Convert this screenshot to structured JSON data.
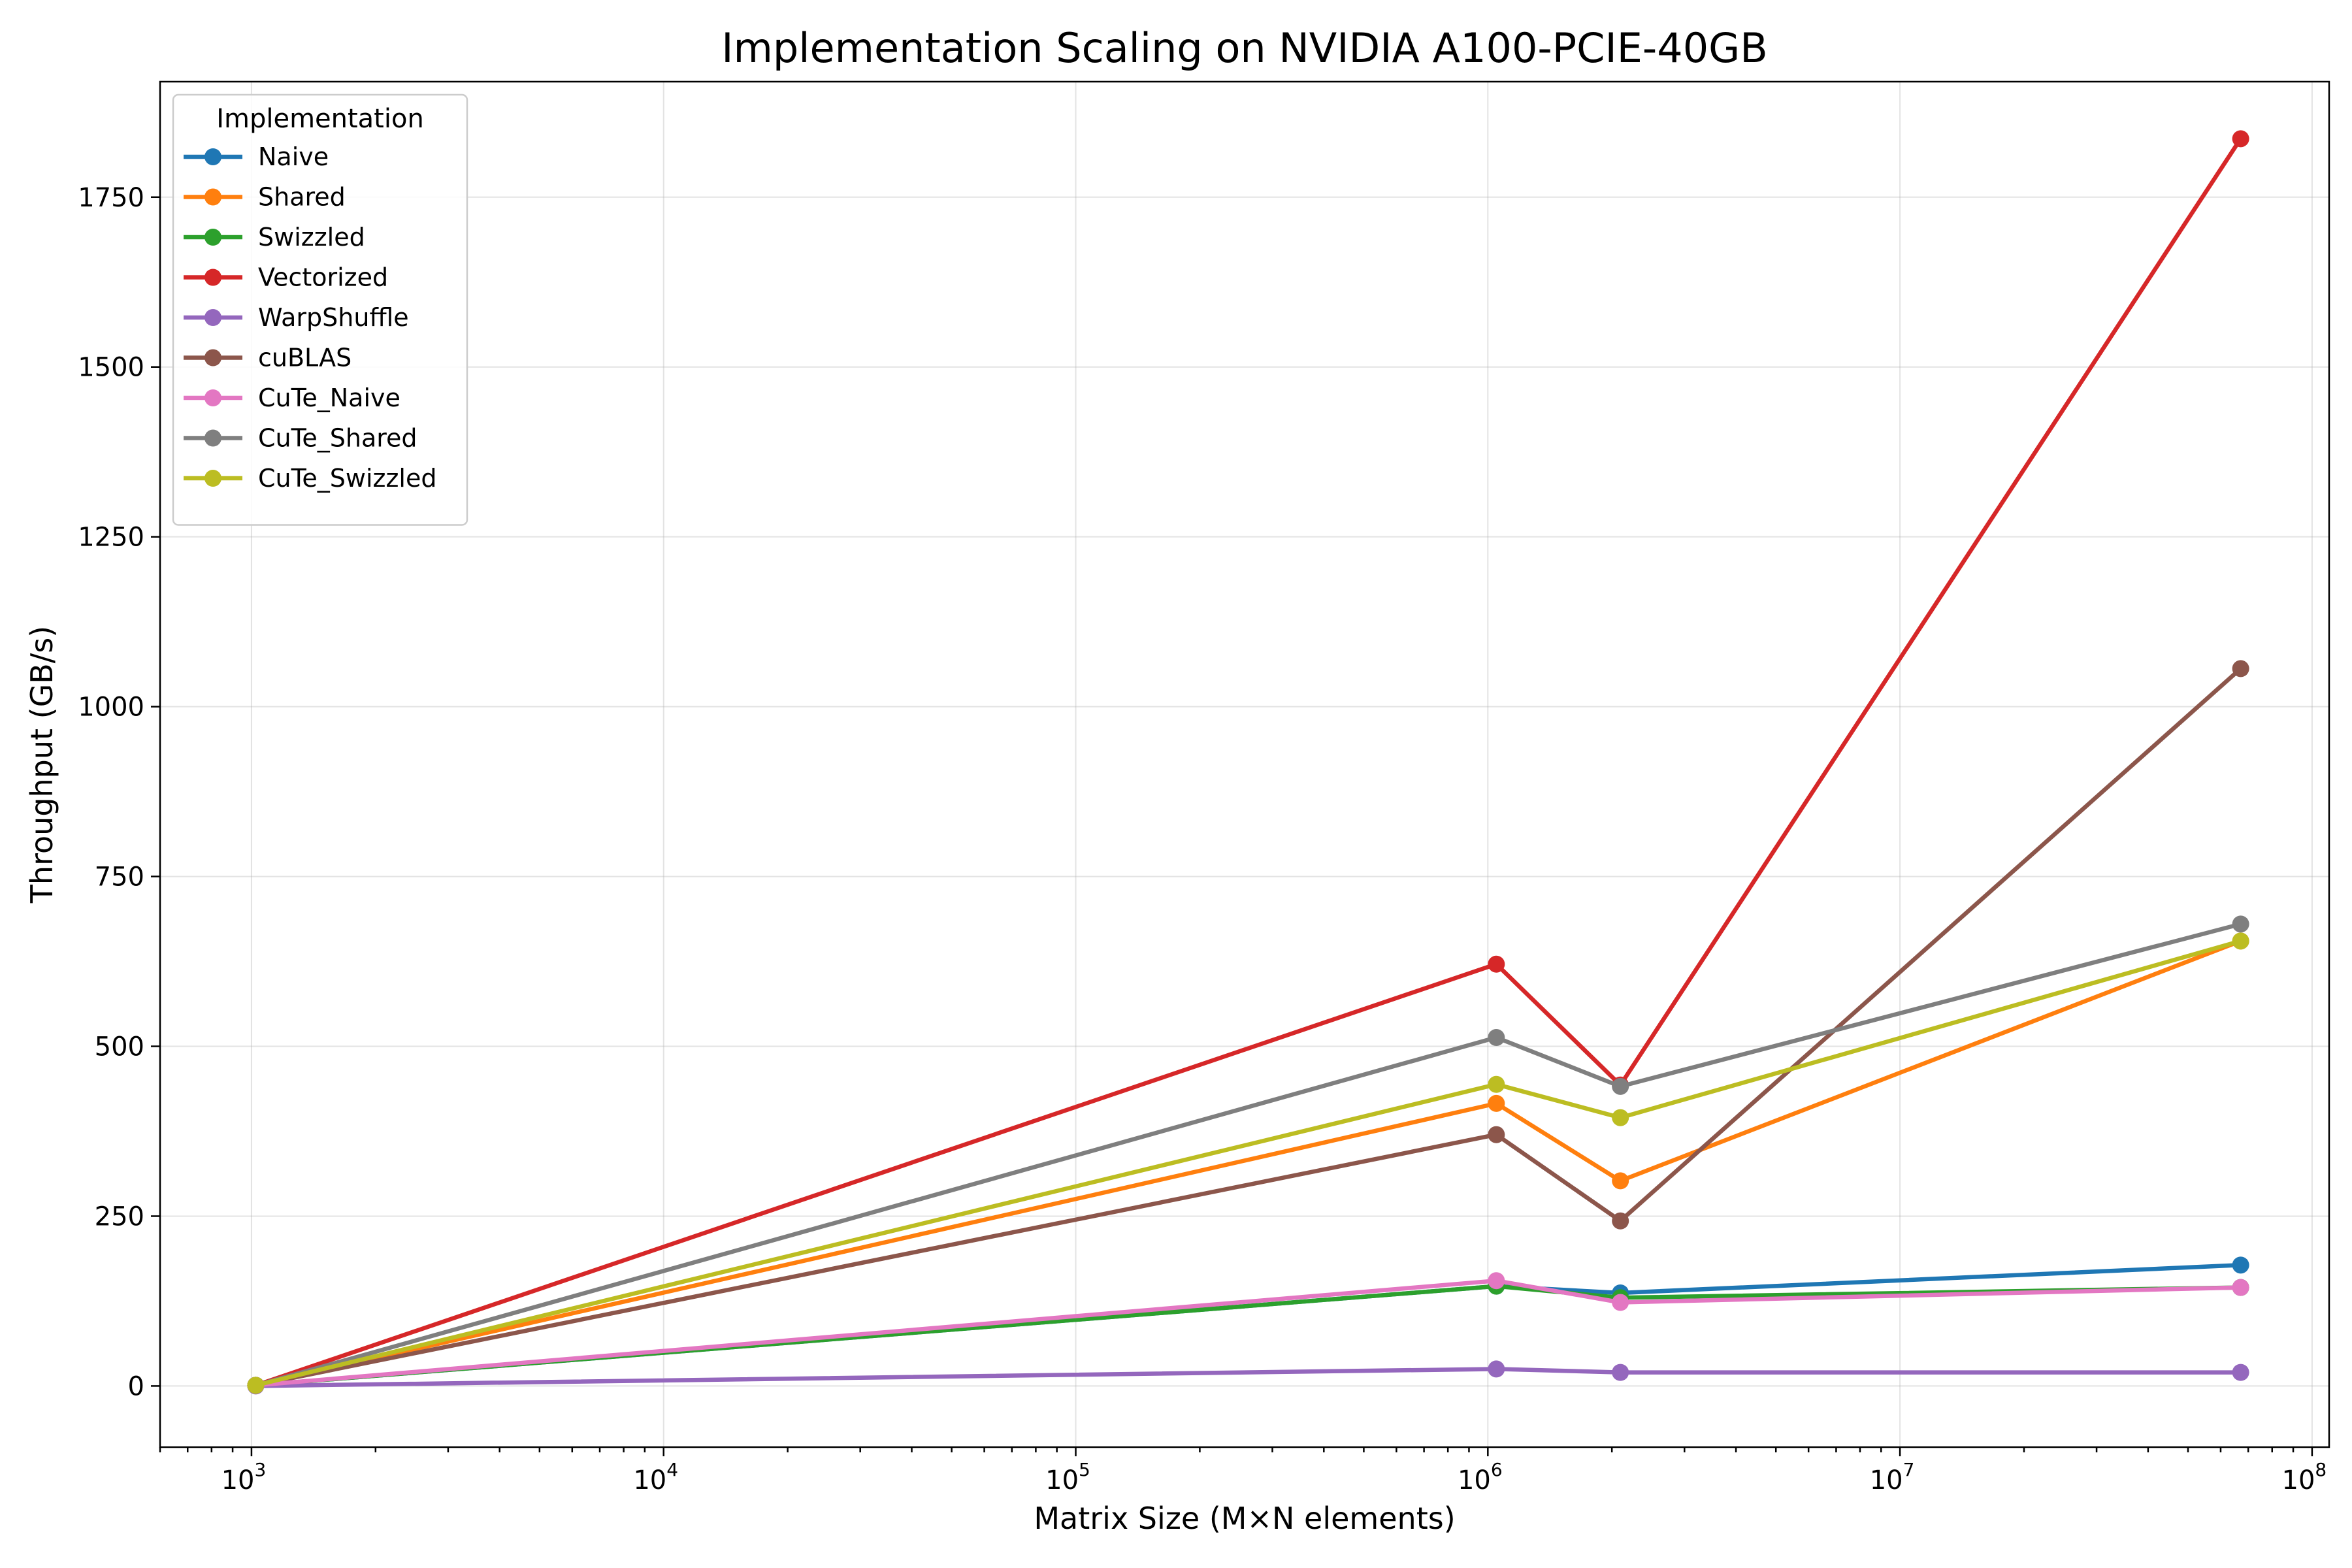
{
  "chart_data": {
    "type": "line",
    "title": "Implementation Scaling on NVIDIA A100-PCIE-40GB",
    "xlabel": "Matrix Size (M×N elements)",
    "ylabel": "Throughput (GB/s)",
    "x_scale": "log",
    "xlim": [
      600,
      110000000
    ],
    "ylim": [
      -90,
      1920
    ],
    "grid": true,
    "x_ticks": [
      {
        "base": "10",
        "exp": "3",
        "value": 1000
      },
      {
        "base": "10",
        "exp": "4",
        "value": 10000
      },
      {
        "base": "10",
        "exp": "5",
        "value": 100000
      },
      {
        "base": "10",
        "exp": "6",
        "value": 1000000
      },
      {
        "base": "10",
        "exp": "7",
        "value": 10000000
      },
      {
        "base": "10",
        "exp": "8",
        "value": 100000000
      }
    ],
    "y_ticks": [
      0,
      250,
      500,
      750,
      1000,
      1250,
      1500,
      1750
    ],
    "x": [
      1024,
      1048576,
      2097152,
      67108864
    ],
    "legend": {
      "title": "Implementation",
      "position": "upper left"
    },
    "series": [
      {
        "name": "Naive",
        "color": "#1f77b4",
        "values": [
          1,
          147,
          137,
          178
        ]
      },
      {
        "name": "Shared",
        "color": "#ff7f0e",
        "values": [
          1,
          416,
          302,
          655
        ]
      },
      {
        "name": "Swizzled",
        "color": "#2ca02c",
        "values": [
          1,
          147,
          130,
          145
        ]
      },
      {
        "name": "Vectorized",
        "color": "#d62728",
        "values": [
          1,
          621,
          443,
          1836
        ]
      },
      {
        "name": "WarpShuffle",
        "color": "#9467bd",
        "values": [
          0,
          25,
          20,
          20
        ]
      },
      {
        "name": "cuBLAS",
        "color": "#8c564b",
        "values": [
          1,
          370,
          243,
          1056
        ]
      },
      {
        "name": "CuTe_Naive",
        "color": "#e377c2",
        "values": [
          1,
          155,
          123,
          145
        ]
      },
      {
        "name": "CuTe_Shared",
        "color": "#7f7f7f",
        "values": [
          1,
          513,
          441,
          680
        ]
      },
      {
        "name": "CuTe_Swizzled",
        "color": "#bcbd22",
        "values": [
          1,
          444,
          395,
          655
        ]
      }
    ]
  }
}
